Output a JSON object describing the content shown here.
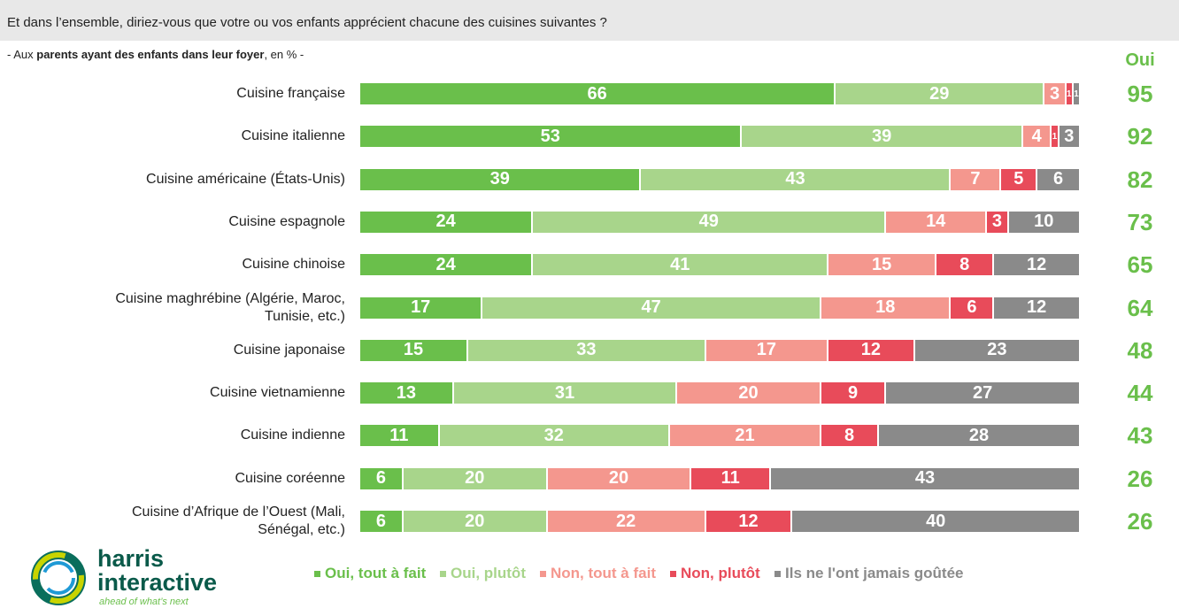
{
  "chart_data": {
    "type": "stacked-bar-horizontal",
    "title": "Et dans l’ensemble, diriez-vous que votre ou vos enfants apprécient chacune des cuisines suivantes ?",
    "subtitle": [
      "- Aux ",
      "parents ayant des enfants dans leur foyer",
      ", en % -"
    ],
    "categories": [
      "Cuisine française",
      "Cuisine italienne",
      "Cuisine américaine (États-Unis)",
      "Cuisine espagnole",
      "Cuisine chinoise",
      "Cuisine maghrébine (Algérie, Maroc, Tunisie, etc.)",
      "Cuisine japonaise",
      "Cuisine vietnamienne",
      "Cuisine indienne",
      "Cuisine coréenne",
      "Cuisine d’Afrique de l’Ouest (Mali, Sénégal, etc.)"
    ],
    "series": [
      {
        "name": "Oui, tout à fait",
        "color": "#6abf4b",
        "values": [
          66,
          53,
          39,
          24,
          24,
          17,
          15,
          13,
          11,
          6,
          6
        ]
      },
      {
        "name": "Oui, plutôt",
        "color": "#a8d58b",
        "values": [
          29,
          39,
          43,
          49,
          41,
          47,
          33,
          31,
          32,
          20,
          20
        ]
      },
      {
        "name": "Non, tout à fait",
        "color": "#f4978e",
        "values": [
          3,
          4,
          7,
          14,
          15,
          18,
          17,
          20,
          21,
          20,
          22
        ]
      },
      {
        "name": "Non, plutôt",
        "color": "#e84b5a",
        "values": [
          1,
          1,
          5,
          3,
          8,
          6,
          12,
          9,
          8,
          11,
          12
        ]
      },
      {
        "name": "Ils ne l'ont jamais goûtée",
        "color": "#8a8a8a",
        "values": [
          1,
          3,
          6,
          10,
          12,
          12,
          23,
          27,
          28,
          43,
          40
        ]
      }
    ],
    "xlim": [
      0,
      100
    ],
    "totals": {
      "label": "Oui",
      "color": "#6abf4b",
      "values": [
        95,
        92,
        82,
        73,
        65,
        64,
        48,
        44,
        43,
        26,
        26
      ]
    },
    "logo": {
      "name": [
        "harris",
        "interactive"
      ],
      "tagline": "ahead of what’s next"
    }
  }
}
